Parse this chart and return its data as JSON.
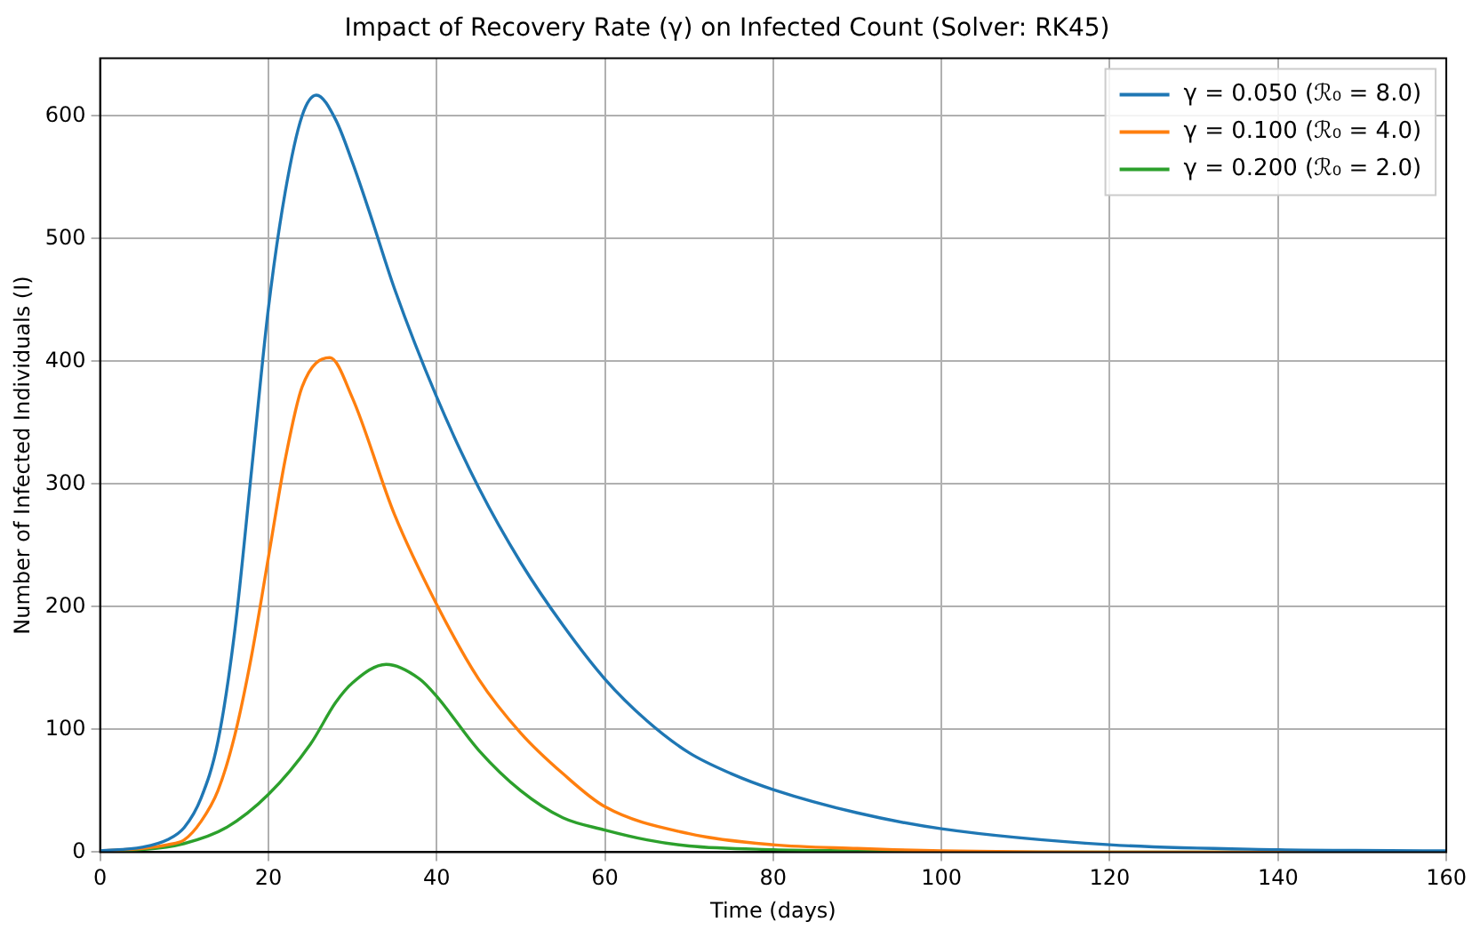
{
  "chart_data": {
    "type": "line",
    "title": "Impact of Recovery Rate (γ) on Infected Count (Solver: RK45)",
    "xlabel": "Time (days)",
    "ylabel": "Number of Infected Individuals (I)",
    "xlim": [
      0,
      160
    ],
    "ylim": [
      0,
      647
    ],
    "xticks": [
      0,
      20,
      40,
      60,
      80,
      100,
      120,
      140,
      160
    ],
    "yticks": [
      0,
      100,
      200,
      300,
      400,
      500,
      600
    ],
    "grid": true,
    "legend": "top right",
    "marker": "none",
    "line_style": "solid",
    "series": [
      {
        "name": "γ = 0.050 (ℛ₀ = 8.0)",
        "color": "#1f77b4",
        "x": [
          0,
          5,
          8,
          10,
          12,
          14,
          16,
          18,
          20,
          22,
          24,
          25.7,
          28,
          30,
          32,
          35,
          40,
          45,
          50,
          55,
          60,
          65,
          70,
          75,
          80,
          90,
          100,
          120,
          140,
          160
        ],
        "values": [
          1,
          4,
          10,
          20,
          44,
          90,
          180,
          311,
          443,
          538,
          600,
          617,
          597,
          562,
          522,
          459,
          371,
          297,
          236,
          185,
          141,
          107,
          81,
          64,
          51,
          32,
          19,
          6,
          2,
          1
        ]
      },
      {
        "name": "γ = 0.100 (ℛ₀ = 4.0)",
        "color": "#ff7f0e",
        "x": [
          0,
          5,
          8,
          10,
          12,
          14,
          16,
          18,
          20,
          22,
          24,
          27.3,
          30,
          35,
          40,
          45,
          50,
          55,
          60,
          70,
          80,
          90,
          100,
          120,
          160
        ],
        "values": [
          1,
          3,
          6,
          10,
          25,
          50,
          95,
          160,
          240,
          320,
          379,
          403,
          370,
          275,
          202,
          141,
          97,
          64,
          37,
          15,
          6,
          3,
          1,
          0,
          0
        ]
      },
      {
        "name": "γ = 0.200 (ℛ₀ = 2.0)",
        "color": "#2ca02c",
        "x": [
          0,
          5,
          10,
          15,
          20,
          25,
          28,
          30,
          34,
          38,
          40,
          45,
          50,
          55,
          60,
          65,
          70,
          80,
          90,
          100,
          160
        ],
        "values": [
          1,
          2,
          7,
          20,
          47,
          88,
          122,
          138,
          153,
          141,
          127,
          83,
          50,
          28,
          18,
          10,
          5,
          2,
          1,
          0,
          0
        ]
      }
    ]
  }
}
